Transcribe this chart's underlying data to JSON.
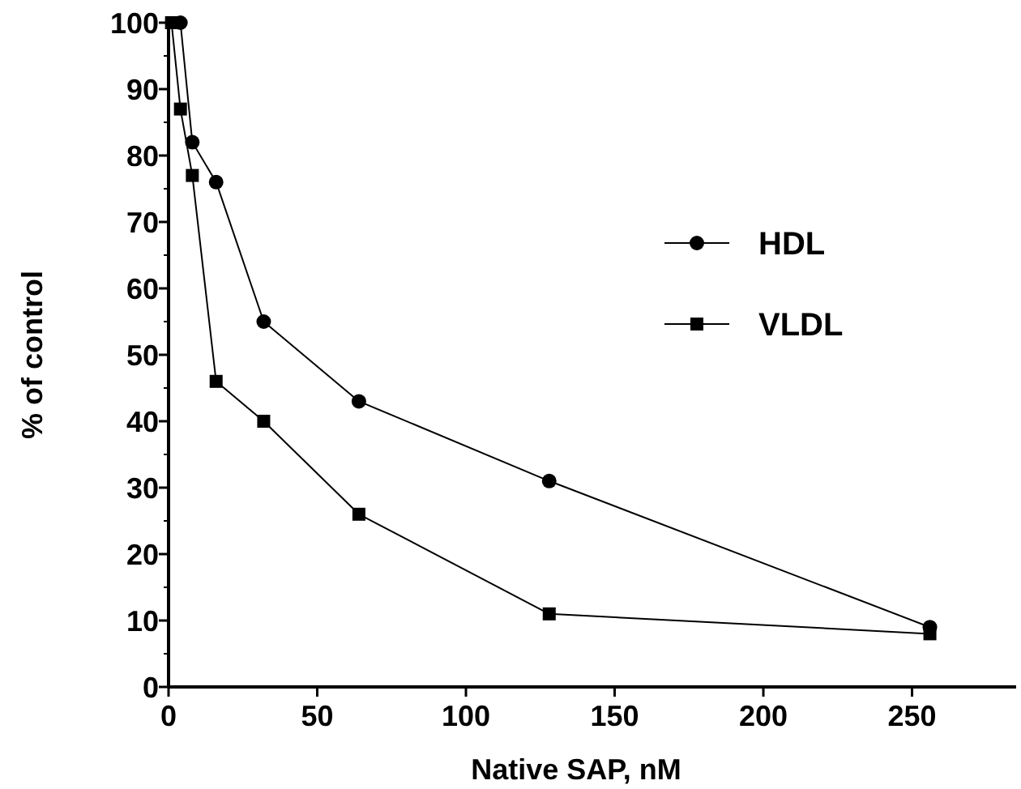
{
  "chart_data": {
    "type": "line",
    "xlabel": "Native SAP, nM",
    "ylabel": "% of control",
    "xlim": [
      0,
      285
    ],
    "ylim": [
      0,
      100
    ],
    "xticks": [
      0,
      50,
      100,
      150,
      200,
      250
    ],
    "yticks": [
      0,
      10,
      20,
      30,
      40,
      50,
      60,
      70,
      80,
      90,
      100
    ],
    "grid": false,
    "legend": "right",
    "line_style": "solid",
    "series": [
      {
        "name": "HDL",
        "color": "#000000",
        "marker": "circle",
        "x": [
          4,
          8,
          16,
          32,
          64,
          128,
          256
        ],
        "values": [
          100,
          82,
          76,
          55,
          43,
          31,
          9
        ]
      },
      {
        "name": "VLDL",
        "color": "#000000",
        "marker": "square",
        "x": [
          1,
          4,
          8,
          16,
          32,
          64,
          128,
          256
        ],
        "values": [
          100,
          87,
          77,
          46,
          40,
          26,
          11,
          8
        ]
      }
    ]
  }
}
